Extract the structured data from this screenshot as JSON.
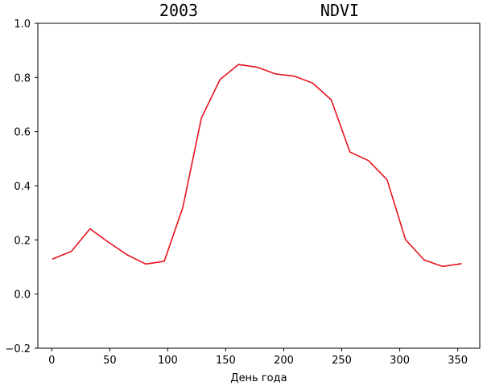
{
  "chart_data": {
    "type": "line",
    "title_parts": [
      "2003",
      "NDVI"
    ],
    "xlabel": "День года",
    "ylabel": "",
    "xlim": [
      -12,
      369
    ],
    "ylim": [
      -0.2,
      1.0
    ],
    "xticks": [
      0,
      50,
      100,
      150,
      200,
      250,
      300,
      350
    ],
    "xtick_labels": [
      "0",
      "50",
      "100",
      "150",
      "200",
      "250",
      "300",
      "350"
    ],
    "yticks": [
      -0.2,
      0.0,
      0.2,
      0.4,
      0.6,
      0.8,
      1.0
    ],
    "ytick_labels": [
      "−0.2",
      "0.0",
      "0.2",
      "0.4",
      "0.6",
      "0.8",
      "1.0"
    ],
    "grid": false,
    "series": [
      {
        "color": "#e8141e",
        "x": [
          1,
          17,
          33,
          49,
          65,
          81,
          97,
          113,
          129,
          145,
          161,
          177,
          193,
          209,
          225,
          241,
          257,
          273,
          289,
          305,
          321,
          337,
          353
        ],
        "y": [
          0.13,
          0.158,
          0.241,
          0.191,
          0.145,
          0.111,
          0.121,
          0.32,
          0.65,
          0.792,
          0.848,
          0.838,
          0.813,
          0.805,
          0.779,
          0.717,
          0.525,
          0.493,
          0.423,
          0.201,
          0.126,
          0.102,
          0.112
        ]
      }
    ]
  }
}
